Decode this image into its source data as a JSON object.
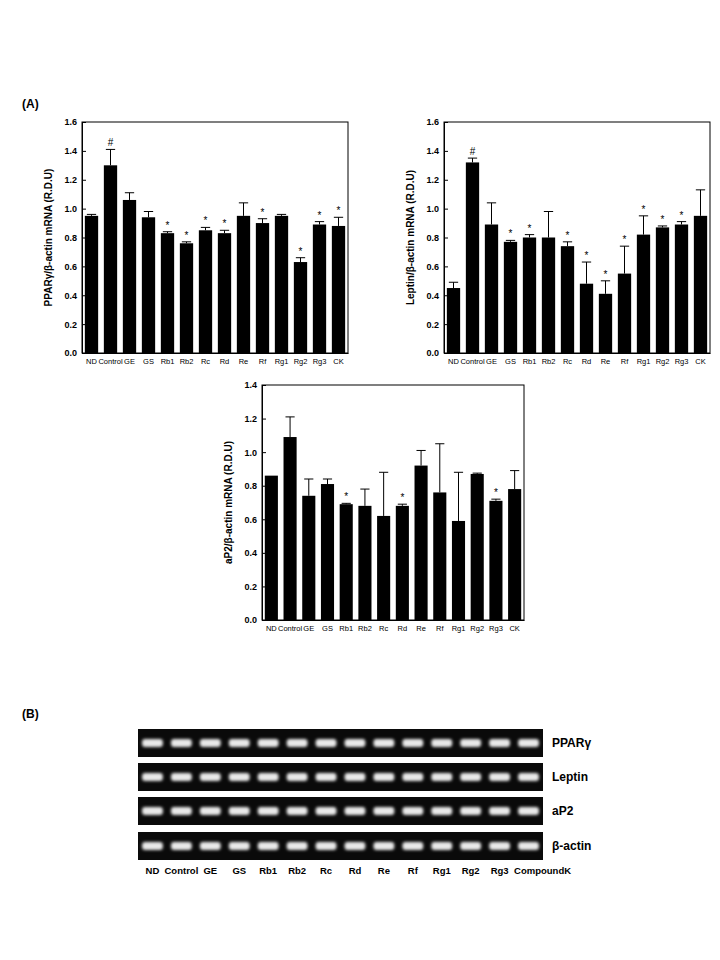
{
  "panel_labels": [
    "(A)",
    "(B)"
  ],
  "chart_data": [
    {
      "type": "bar",
      "ylabel": "PPARγ/β-actin mRNA (R.D.U)",
      "categories": [
        "ND",
        "Control",
        "GE",
        "GS",
        "Rb1",
        "Rb2",
        "Rc",
        "Rd",
        "Re",
        "Rf",
        "Rg1",
        "Rg2",
        "Rg3",
        "CK"
      ],
      "values": [
        0.95,
        1.3,
        1.06,
        0.94,
        0.83,
        0.76,
        0.85,
        0.83,
        0.95,
        0.9,
        0.95,
        0.63,
        0.89,
        0.88
      ],
      "errors": [
        0.01,
        0.11,
        0.05,
        0.04,
        0.01,
        0.01,
        0.02,
        0.02,
        0.09,
        0.03,
        0.01,
        0.03,
        0.02,
        0.06
      ],
      "significance": [
        null,
        "#",
        null,
        null,
        "*",
        "*",
        "*",
        "*",
        null,
        "*",
        null,
        "*",
        "*",
        "*"
      ],
      "color": "#000000",
      "ylim": [
        0,
        1.6
      ],
      "yticks": [
        {
          "value": 0,
          "label": "0.0"
        },
        {
          "value": 0.2,
          "label": "0.2"
        },
        {
          "value": 0.4,
          "label": "0.4"
        },
        {
          "value": 0.6,
          "label": "0.6"
        },
        {
          "value": 0.8,
          "label": "0.8"
        },
        {
          "value": 1.0,
          "label": "1.0"
        },
        {
          "value": 1.2,
          "label": "1.2"
        },
        {
          "value": 1.4,
          "label": "1.4"
        },
        {
          "value": 1.6,
          "label": "1.6"
        }
      ]
    },
    {
      "type": "bar",
      "ylabel": "Leptin/β-actin mRNA (R.D.U)",
      "categories": [
        "ND",
        "Control",
        "GE",
        "GS",
        "Rb1",
        "Rb2",
        "Rc",
        "Rd",
        "Re",
        "Rf",
        "Rg1",
        "Rg2",
        "Rg3",
        "CK"
      ],
      "values": [
        0.45,
        1.32,
        0.89,
        0.77,
        0.8,
        0.8,
        0.74,
        0.48,
        0.41,
        0.55,
        0.82,
        0.87,
        0.89,
        0.95
      ],
      "errors": [
        0.04,
        0.03,
        0.15,
        0.01,
        0.02,
        0.18,
        0.03,
        0.15,
        0.09,
        0.19,
        0.13,
        0.01,
        0.02,
        0.18
      ],
      "significance": [
        null,
        "#",
        null,
        "*",
        "*",
        null,
        "*",
        "*",
        "*",
        "*",
        "*",
        "*",
        "*",
        null
      ],
      "color": "#000000",
      "ylim": [
        0,
        1.6
      ],
      "yticks": [
        {
          "value": 0,
          "label": "0.0"
        },
        {
          "value": 0.2,
          "label": "0.2"
        },
        {
          "value": 0.4,
          "label": "0.4"
        },
        {
          "value": 0.6,
          "label": "0.6"
        },
        {
          "value": 0.8,
          "label": "0.8"
        },
        {
          "value": 1.0,
          "label": "1.0"
        },
        {
          "value": 1.2,
          "label": "1.2"
        },
        {
          "value": 1.4,
          "label": "1.4"
        },
        {
          "value": 1.6,
          "label": "1.6"
        }
      ]
    },
    {
      "type": "bar",
      "ylabel": "aP2/β-actin mRNA (R.D.U)",
      "categories": [
        "ND",
        "Control",
        "GE",
        "GS",
        "Rb1",
        "Rb2",
        "Rc",
        "Rd",
        "Re",
        "Rf",
        "Rg1",
        "Rg2",
        "Rg3",
        "CK"
      ],
      "values": [
        0.86,
        1.09,
        0.74,
        0.81,
        0.69,
        0.68,
        0.62,
        0.68,
        0.92,
        0.76,
        0.59,
        0.87,
        0.71,
        0.78
      ],
      "errors": [
        null,
        0.12,
        0.1,
        0.03,
        0.005,
        0.1,
        0.26,
        0.01,
        0.09,
        0.29,
        0.29,
        0.005,
        0.01,
        0.11
      ],
      "significance": [
        null,
        null,
        null,
        null,
        "*",
        null,
        null,
        "*",
        null,
        null,
        null,
        null,
        "*",
        null
      ],
      "color": "#000000",
      "ylim": [
        0,
        1.4
      ],
      "yticks": [
        {
          "value": 0,
          "label": "0.0"
        },
        {
          "value": 0.2,
          "label": "0.2"
        },
        {
          "value": 0.4,
          "label": "0.4"
        },
        {
          "value": 0.6,
          "label": "0.6"
        },
        {
          "value": 0.8,
          "label": "0.8"
        },
        {
          "value": 1.0,
          "label": "1.0"
        },
        {
          "value": 1.2,
          "label": "1.2"
        },
        {
          "value": 1.4,
          "label": "1.4"
        }
      ]
    }
  ],
  "gel": {
    "genes": [
      "PPARγ",
      "Leptin",
      "aP2",
      "β-actin"
    ],
    "lanes": [
      "ND",
      "Control",
      "GE",
      "GS",
      "Rb1",
      "Rb2",
      "Rc",
      "Rd",
      "Re",
      "Rf",
      "Rg1",
      "Rg2",
      "Rg3",
      "CompoundK"
    ]
  }
}
